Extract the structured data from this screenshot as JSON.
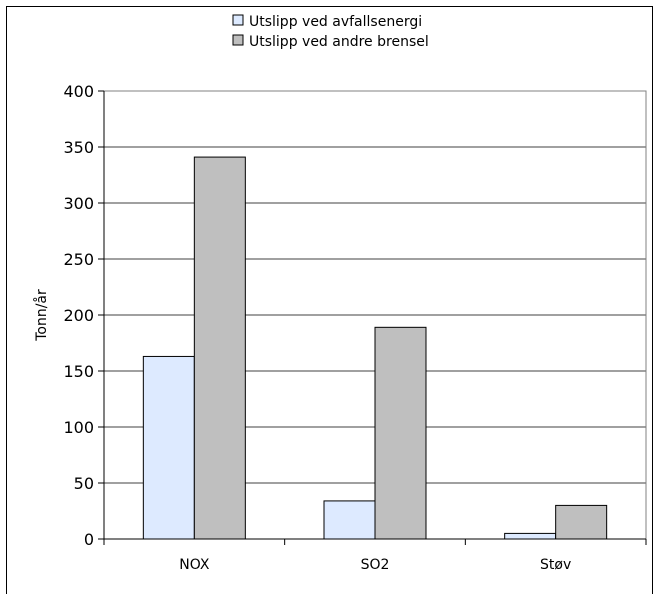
{
  "chart_data": {
    "type": "bar",
    "categories": [
      "NOX",
      "SO2",
      "Støv"
    ],
    "series": [
      {
        "name": "Utslipp ved avfallsenergi",
        "values": [
          163,
          34,
          5
        ],
        "color": "#ddeaff"
      },
      {
        "name": "Utslipp ved andre brensel",
        "values": [
          341,
          189,
          30
        ],
        "color": "#bfbfbf"
      }
    ],
    "ylabel": "Tonn/år",
    "ylim": [
      0,
      400
    ],
    "yticks": [
      0,
      50,
      100,
      150,
      200,
      250,
      300,
      350,
      400
    ],
    "grid": true,
    "legend_position": "top"
  }
}
